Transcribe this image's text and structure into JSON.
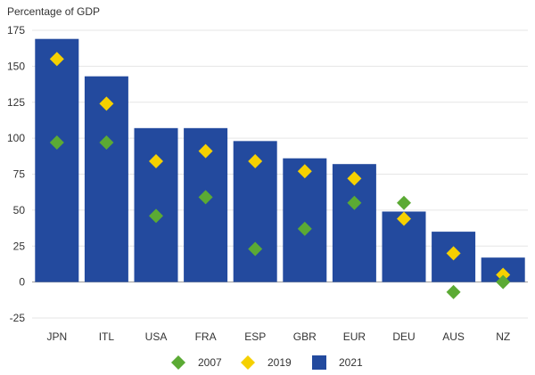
{
  "chart_data": {
    "type": "bar",
    "ylabel": "Percentage of GDP",
    "ylim": [
      -25,
      175
    ],
    "yticks": [
      -25,
      0,
      25,
      50,
      75,
      100,
      125,
      150,
      175
    ],
    "grid": true,
    "legend_position": "bottom",
    "categories": [
      "JPN",
      "ITL",
      "USA",
      "FRA",
      "ESP",
      "GBR",
      "EUR",
      "DEU",
      "AUS",
      "NZ"
    ],
    "series": [
      {
        "name": "2021",
        "kind": "bar",
        "color": "#234A9E",
        "values": [
          169,
          143,
          107,
          107,
          98,
          86,
          82,
          49,
          35,
          17
        ]
      },
      {
        "name": "2019",
        "kind": "marker",
        "color": "#F5D000",
        "values": [
          155,
          124,
          84,
          91,
          84,
          77,
          72,
          44,
          20,
          5
        ]
      },
      {
        "name": "2007",
        "kind": "marker",
        "color": "#5BAA34",
        "values": [
          97,
          97,
          46,
          59,
          23,
          37,
          55,
          55,
          -7,
          0
        ]
      }
    ],
    "legend": [
      {
        "name": "2007",
        "shape": "diamond",
        "color": "#5BAA34"
      },
      {
        "name": "2019",
        "shape": "diamond",
        "color": "#F5D000"
      },
      {
        "name": "2021",
        "shape": "square",
        "color": "#234A9E"
      }
    ]
  }
}
